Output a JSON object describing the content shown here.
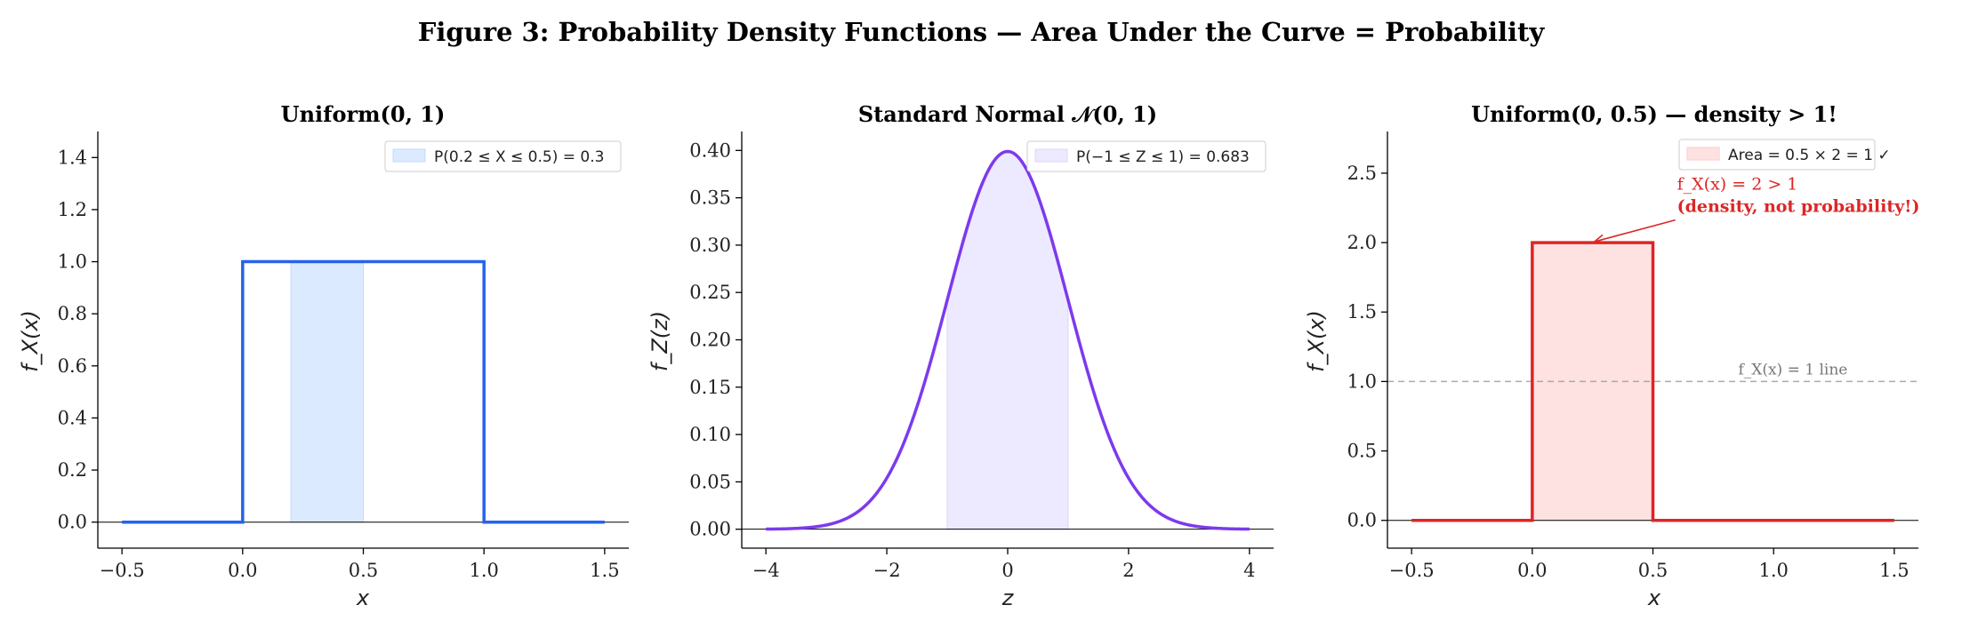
{
  "figure": {
    "title": "Figure 3: Probability Density Functions — Area Under the Curve = Probability"
  },
  "chart_data": [
    {
      "type": "line",
      "title": "Uniform(0, 1)",
      "xlabel": "x",
      "ylabel": "f_X(x)",
      "xlim": [
        -0.6,
        1.6
      ],
      "ylim": [
        -0.1,
        1.5
      ],
      "xticks": [
        "−0.5",
        "0.0",
        "0.5",
        "1.0",
        "1.5"
      ],
      "xtick_values": [
        -0.5,
        0.0,
        0.5,
        1.0,
        1.5
      ],
      "yticks": [
        "0.0",
        "0.2",
        "0.4",
        "0.6",
        "0.8",
        "1.0",
        "1.2",
        "1.4"
      ],
      "ytick_values": [
        0.0,
        0.2,
        0.4,
        0.6,
        0.8,
        1.0,
        1.2,
        1.4
      ],
      "series": [
        {
          "x": [
            -0.5,
            0.0,
            0.0,
            1.0,
            1.0,
            1.5
          ],
          "y": [
            0,
            0,
            1,
            1,
            0,
            0
          ],
          "color": "#2563eb"
        }
      ],
      "shaded_region": {
        "x_from": 0.2,
        "x_to": 0.5,
        "y": 1.0,
        "color": "#dbeafe"
      },
      "legend": {
        "position": "top-right",
        "entries": [
          {
            "label": "P(0.2 ≤ X ≤ 0.5) = 0.3",
            "color": "#dbeafe"
          }
        ]
      },
      "grid": false
    },
    {
      "type": "line",
      "title": "Standard Normal 𝒩(0, 1)",
      "xlabel": "z",
      "ylabel": "f_Z(z)",
      "xlim": [
        -4.4,
        4.4
      ],
      "ylim": [
        -0.02,
        0.42
      ],
      "xticks": [
        "−4",
        "−2",
        "0",
        "2",
        "4"
      ],
      "xtick_values": [
        -4,
        -2,
        0,
        2,
        4
      ],
      "yticks": [
        "0.00",
        "0.05",
        "0.10",
        "0.15",
        "0.20",
        "0.25",
        "0.30",
        "0.35",
        "0.40"
      ],
      "ytick_values": [
        0.0,
        0.05,
        0.1,
        0.15,
        0.2,
        0.25,
        0.3,
        0.35,
        0.4
      ],
      "series": [
        {
          "function": "standard_normal_pdf",
          "x_range": [
            -4,
            4
          ],
          "color": "#7c3aed"
        }
      ],
      "shaded_region": {
        "x_from": -1,
        "x_to": 1,
        "color": "#ede9fe"
      },
      "legend": {
        "position": "top-right",
        "entries": [
          {
            "label": "P(−1 ≤ Z ≤ 1) = 0.683",
            "color": "#ede9fe"
          }
        ]
      },
      "grid": false
    },
    {
      "type": "line",
      "title": "Uniform(0, 0.5) — density > 1!",
      "xlabel": "x",
      "ylabel": "f_X(x)",
      "xlim": [
        -0.6,
        1.6
      ],
      "ylim": [
        -0.2,
        2.8
      ],
      "xticks": [
        "−0.5",
        "0.0",
        "0.5",
        "1.0",
        "1.5"
      ],
      "xtick_values": [
        -0.5,
        0.0,
        0.5,
        1.0,
        1.5
      ],
      "yticks": [
        "0.0",
        "0.5",
        "1.0",
        "1.5",
        "2.0",
        "2.5"
      ],
      "ytick_values": [
        0.0,
        0.5,
        1.0,
        1.5,
        2.0,
        2.5
      ],
      "series": [
        {
          "x": [
            -0.5,
            0.0,
            0.0,
            0.5,
            0.5,
            1.5
          ],
          "y": [
            0,
            0,
            2,
            2,
            0,
            0
          ],
          "color": "#dc2626"
        }
      ],
      "shaded_region": {
        "x_from": 0.0,
        "x_to": 0.5,
        "y": 2.0,
        "color": "#fee2e2"
      },
      "reference_line": {
        "y": 1.0,
        "label": "f_X(x) = 1 line",
        "color": "#aaaaaa"
      },
      "annotation": {
        "line1": "f_X(x) = 2 > 1",
        "line2": "(density, not probability!)",
        "point": [
          0.25,
          2.0
        ],
        "text_at": [
          0.6,
          2.38
        ],
        "color": "#dc2626"
      },
      "legend": {
        "position": "top-right",
        "entries": [
          {
            "label": "Area  = 0.5 × 2 = 1 ✓",
            "color": "#fee2e2"
          }
        ]
      },
      "grid": false
    }
  ]
}
